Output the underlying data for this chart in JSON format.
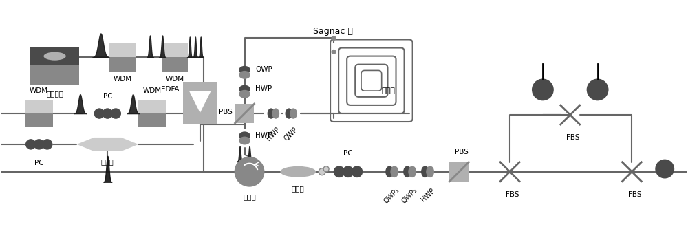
{
  "bg_color": "#ffffff",
  "fig_width": 10.0,
  "fig_height": 3.65,
  "gray_dark": "#2a2a2a",
  "gray_mid": "#666666",
  "gray_box_dark": "#4a4a4a",
  "gray_box_mid": "#888888",
  "gray_box_light": "#b0b0b0",
  "gray_box_lighter": "#cccccc",
  "sagnac_label": "Sagnac 环",
  "silicon_label": "硒波导",
  "laser_label": "脉冲激光",
  "circulator_label": "环形器",
  "filter_label": "滤波器",
  "delay_label": "延时线",
  "edfa_label": "EDFA",
  "wdm_label": "WDM",
  "pbs_label": "PBS",
  "qwp_label": "QWP",
  "hwp_label": "HWP",
  "pc_label": "PC",
  "fbs_label": "FBS"
}
